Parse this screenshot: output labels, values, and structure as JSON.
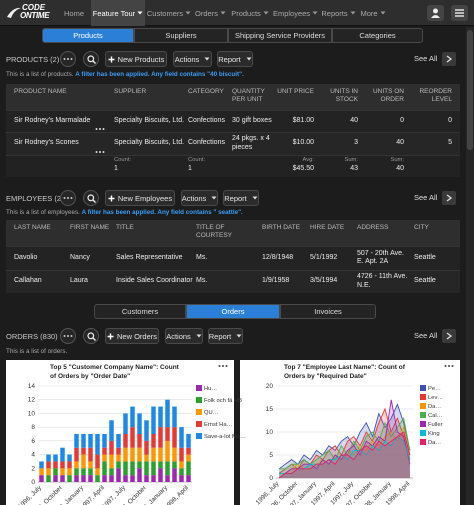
{
  "nav": {
    "logo_top": "CODE",
    "logo_bottom": "ONTIME",
    "items": [
      "Home",
      "Feature Tour",
      "Customers",
      "Orders",
      "Products",
      "Employees",
      "Reports",
      "More"
    ]
  },
  "tabs": [
    "Products",
    "Suppliers",
    "Shipping Service Providers",
    "Categories"
  ],
  "products": {
    "title": "PRODUCTS (2)",
    "new": "New Products",
    "actions": "Actions",
    "report": "Report",
    "see_all": "See All",
    "info": "This is a list of products.",
    "filter": "A filter has been applied. Any field contains \"40 biscuit\".",
    "columns": [
      "PRODUCT NAME",
      "SUPPLIER",
      "CATEGORY",
      "QUANTITY PER UNIT",
      "UNIT PRICE",
      "UNITS IN STOCK",
      "UNITS ON ORDER",
      "REORDER LEVEL"
    ],
    "rows": [
      [
        "Sir Rodney's Marmalade",
        "Specialty Biscuits, Ltd.",
        "Confections",
        "30 gift boxes",
        "$81.00",
        "40",
        "0",
        "0"
      ],
      [
        "Sir Rodney's Scones",
        "Specialty Biscuits, Ltd.",
        "Confections",
        "24 pkgs. x 4 pieces",
        "$10.00",
        "3",
        "40",
        "5"
      ]
    ],
    "footer": [
      null,
      {
        "label": "Count:",
        "value": "1"
      },
      {
        "label": "Count:",
        "value": "1"
      },
      null,
      {
        "label": "Avg:",
        "value": "$45.50"
      },
      {
        "label": "Sum:",
        "value": "43"
      },
      {
        "label": "Sum:",
        "value": "40"
      },
      null
    ]
  },
  "employees": {
    "title": "EMPLOYEES (2)",
    "new": "New Employees",
    "actions": "Actions",
    "report": "Report",
    "see_all": "See All",
    "info": "This is a list of employees.",
    "filter": "A filter has been applied. Any field contains \" seattle\".",
    "columns": [
      "LAST NAME",
      "FIRST NAME",
      "TITLE",
      "TITLE OF COURTESY",
      "BIRTH DATE",
      "HIRE DATE",
      "ADDRESS",
      "CITY"
    ],
    "rows": [
      [
        "Davolio",
        "Nancy",
        "Sales Representative",
        "Ms.",
        "12/8/1948",
        "5/1/1992",
        "507 - 20th Ave. E. Apt. 2A",
        "Seattle"
      ],
      [
        "Callahan",
        "Laura",
        "Inside Sales Coordinator",
        "Ms.",
        "1/9/1958",
        "3/5/1994",
        "4726 - 11th Ave. N.E.",
        "Seattle"
      ]
    ]
  },
  "subtabs": [
    "Customers",
    "Orders",
    "Invoices"
  ],
  "orders": {
    "title": "ORDERS (830)",
    "new": "New Orders",
    "actions": "Actions",
    "report": "Report",
    "see_all": "See All",
    "info": "This is a list of orders."
  },
  "chart_data": [
    {
      "type": "bar",
      "stacked": true,
      "title": "Top 5 \"Customer Company Name\": Count of Orders by \"Order Date\"",
      "categories": [
        "1996, July",
        null,
        null,
        "1996, October",
        null,
        null,
        "1997, January",
        null,
        null,
        "1997, April",
        null,
        null,
        "1997, July",
        null,
        null,
        "1997, October",
        null,
        null,
        "1998, January",
        null,
        null,
        "1998, April"
      ],
      "series": [
        {
          "name": "Hu…",
          "color": "#9c27b0",
          "values": [
            1,
            0,
            1,
            1,
            0,
            1,
            1,
            1,
            0,
            1,
            1,
            2,
            1,
            1,
            2,
            1,
            1,
            2,
            1,
            2,
            1,
            1
          ]
        },
        {
          "name": "Folk och fä HB",
          "color": "#2ca02c",
          "values": [
            0,
            1,
            1,
            0,
            1,
            1,
            1,
            1,
            1,
            2,
            1,
            1,
            2,
            2,
            1,
            2,
            2,
            1,
            2,
            1,
            1,
            2
          ]
        },
        {
          "name": "QU…",
          "color": "#ff9800",
          "values": [
            1,
            1,
            0,
            1,
            1,
            1,
            2,
            1,
            1,
            1,
            2,
            1,
            2,
            2,
            2,
            1,
            2,
            2,
            3,
            2,
            1,
            1
          ]
        },
        {
          "name": "Ernst Ha…",
          "color": "#e53935",
          "values": [
            0,
            1,
            1,
            1,
            1,
            2,
            1,
            2,
            2,
            1,
            2,
            1,
            2,
            3,
            2,
            2,
            2,
            3,
            2,
            3,
            2,
            1
          ]
        },
        {
          "name": "Save-a-lot Ma…",
          "color": "#1e88e5",
          "values": [
            1,
            1,
            1,
            2,
            1,
            2,
            2,
            2,
            3,
            2,
            3,
            2,
            3,
            3,
            3,
            3,
            4,
            3,
            4,
            3,
            3,
            2
          ]
        }
      ],
      "ylim": [
        0,
        14
      ],
      "yticks": [
        0,
        2,
        4,
        6,
        8,
        10,
        12,
        14
      ],
      "grid": true
    },
    {
      "type": "line",
      "title": "Top 7 \"Employee Last Name\": Count of Orders by \"Required Date\"",
      "categories": [
        "1996, July",
        null,
        null,
        "1996, October",
        null,
        null,
        "1997, January",
        null,
        null,
        "1997, April",
        null,
        null,
        "1997, July",
        null,
        null,
        "1997, October",
        null,
        null,
        "1998, January",
        null,
        null,
        "1998, April"
      ],
      "series": [
        {
          "name": "Pe…",
          "color": "#3f51b5",
          "values": [
            2,
            3,
            4,
            3,
            5,
            4,
            6,
            5,
            7,
            6,
            8,
            9,
            7,
            10,
            12,
            9,
            14,
            11,
            13,
            16,
            12,
            6
          ]
        },
        {
          "name": "Lev…",
          "color": "#e53935",
          "values": [
            1,
            2,
            3,
            2,
            4,
            3,
            5,
            4,
            6,
            7,
            5,
            8,
            9,
            7,
            10,
            8,
            12,
            15,
            10,
            13,
            9,
            4
          ]
        },
        {
          "name": "Da…",
          "color": "#ff9800",
          "values": [
            1,
            1,
            2,
            3,
            2,
            3,
            3,
            4,
            3,
            5,
            4,
            6,
            5,
            7,
            6,
            8,
            7,
            9,
            10,
            8,
            11,
            5
          ]
        },
        {
          "name": "Cal…",
          "color": "#4caf50",
          "values": [
            2,
            2,
            3,
            3,
            4,
            3,
            4,
            5,
            6,
            4,
            7,
            5,
            8,
            6,
            9,
            10,
            8,
            12,
            9,
            11,
            13,
            6
          ]
        },
        {
          "name": "Fuller",
          "color": "#9c27b0",
          "values": [
            0,
            1,
            2,
            2,
            3,
            3,
            2,
            4,
            3,
            5,
            4,
            6,
            7,
            5,
            8,
            7,
            9,
            8,
            17,
            10,
            9,
            3
          ]
        },
        {
          "name": "King",
          "color": "#00bcd4",
          "values": [
            1,
            1,
            1,
            2,
            2,
            3,
            3,
            3,
            4,
            4,
            5,
            4,
            6,
            6,
            5,
            7,
            6,
            8,
            7,
            9,
            8,
            4
          ]
        },
        {
          "name": "Da…",
          "color": "#e91e63",
          "values": [
            0,
            1,
            1,
            2,
            2,
            2,
            3,
            3,
            4,
            3,
            5,
            5,
            4,
            6,
            7,
            6,
            8,
            7,
            8,
            9,
            10,
            5
          ]
        }
      ],
      "ylim": [
        0,
        20
      ],
      "yticks": [
        0,
        5,
        10,
        15,
        20
      ],
      "grid": true
    }
  ]
}
